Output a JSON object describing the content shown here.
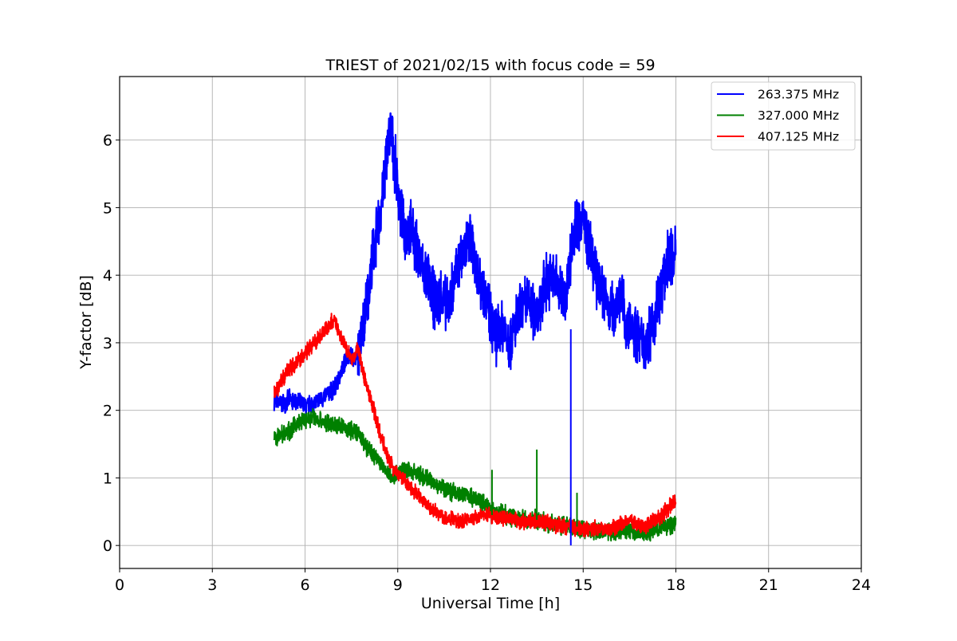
{
  "chart_data": {
    "type": "line",
    "title": "TRIEST of 2021/02/15 with focus code = 59",
    "xlabel": "Universal Time [h]",
    "ylabel": "Y-factor [dB]",
    "xlim": [
      0,
      24
    ],
    "ylim": [
      -0.34,
      6.94
    ],
    "xticks": [
      0,
      3,
      6,
      9,
      12,
      15,
      18,
      21,
      24
    ],
    "xtick_labels": [
      "0",
      "3",
      "6",
      "9",
      "12",
      "15",
      "18",
      "21",
      "24"
    ],
    "yticks": [
      0,
      1,
      2,
      3,
      4,
      5,
      6
    ],
    "ytick_labels": [
      "0",
      "1",
      "2",
      "3",
      "4",
      "5",
      "6"
    ],
    "grid": true,
    "legend_position": "top-right",
    "series": [
      {
        "name": "263.375 MHz",
        "color": "#0000ff",
        "x": [
          5.0,
          5.25,
          5.5,
          5.75,
          6.0,
          6.25,
          6.5,
          6.75,
          7.0,
          7.2,
          7.4,
          7.6,
          7.8,
          8.0,
          8.2,
          8.4,
          8.6,
          8.75,
          8.9,
          9.05,
          9.2,
          9.4,
          9.6,
          9.8,
          10.0,
          10.2,
          10.4,
          10.6,
          10.8,
          11.0,
          11.2,
          11.4,
          11.6,
          11.8,
          12.0,
          12.2,
          12.4,
          12.6,
          12.8,
          13.0,
          13.2,
          13.4,
          13.6,
          13.8,
          14.0,
          14.2,
          14.4,
          14.55,
          14.65,
          14.8,
          15.0,
          15.2,
          15.4,
          15.6,
          15.8,
          16.0,
          16.2,
          16.4,
          16.6,
          16.8,
          17.0,
          17.2,
          17.4,
          17.6,
          17.8,
          18.0
        ],
        "y": [
          2.15,
          2.1,
          2.15,
          2.12,
          2.05,
          2.1,
          2.15,
          2.25,
          2.35,
          2.6,
          2.85,
          2.75,
          3.0,
          3.6,
          4.3,
          4.8,
          5.6,
          6.2,
          5.7,
          5.1,
          4.6,
          4.7,
          4.4,
          4.1,
          3.9,
          3.6,
          3.7,
          3.5,
          3.85,
          4.2,
          4.45,
          4.5,
          4.0,
          3.8,
          3.35,
          3.1,
          3.3,
          3.0,
          3.25,
          3.5,
          3.6,
          3.45,
          3.55,
          3.9,
          3.95,
          3.85,
          3.6,
          4.1,
          4.55,
          4.75,
          4.85,
          4.4,
          4.0,
          3.8,
          3.55,
          3.5,
          3.8,
          3.2,
          3.25,
          3.05,
          3.0,
          3.2,
          3.6,
          3.9,
          4.35,
          4.25
        ]
      },
      {
        "name": "327.000 MHz",
        "color": "#008000",
        "x": [
          5.0,
          5.25,
          5.5,
          5.75,
          6.0,
          6.25,
          6.5,
          6.75,
          7.0,
          7.2,
          7.4,
          7.6,
          7.8,
          8.0,
          8.2,
          8.4,
          8.6,
          8.8,
          9.0,
          9.25,
          9.5,
          9.75,
          10.0,
          10.25,
          10.5,
          10.75,
          11.0,
          11.25,
          11.5,
          11.75,
          12.0,
          12.25,
          12.5,
          12.75,
          13.0,
          13.25,
          13.5,
          13.75,
          14.0,
          14.25,
          14.5,
          14.75,
          15.0,
          15.25,
          15.5,
          15.75,
          16.0,
          16.25,
          16.5,
          16.75,
          17.0,
          17.25,
          17.5,
          17.75,
          18.0
        ],
        "y": [
          1.6,
          1.65,
          1.7,
          1.8,
          1.85,
          1.9,
          1.85,
          1.8,
          1.78,
          1.75,
          1.72,
          1.7,
          1.6,
          1.45,
          1.35,
          1.25,
          1.1,
          1.02,
          1.1,
          1.12,
          1.08,
          1.03,
          0.98,
          0.9,
          0.85,
          0.8,
          0.78,
          0.75,
          0.7,
          0.62,
          0.55,
          0.48,
          0.45,
          0.42,
          0.4,
          0.38,
          0.38,
          0.35,
          0.32,
          0.3,
          0.28,
          0.26,
          0.24,
          0.22,
          0.2,
          0.2,
          0.2,
          0.22,
          0.25,
          0.18,
          0.18,
          0.22,
          0.25,
          0.3,
          0.32
        ]
      },
      {
        "name": "407.125 MHz",
        "color": "#ff0000",
        "x": [
          5.0,
          5.2,
          5.4,
          5.6,
          5.8,
          6.0,
          6.2,
          6.4,
          6.6,
          6.8,
          6.9,
          7.0,
          7.1,
          7.25,
          7.4,
          7.55,
          7.7,
          7.85,
          8.0,
          8.2,
          8.4,
          8.6,
          8.8,
          9.0,
          9.25,
          9.5,
          9.75,
          10.0,
          10.25,
          10.5,
          10.75,
          11.0,
          11.25,
          11.5,
          11.75,
          12.0,
          12.25,
          12.5,
          12.75,
          13.0,
          13.25,
          13.5,
          13.75,
          14.0,
          14.25,
          14.5,
          14.75,
          15.0,
          15.25,
          15.5,
          15.75,
          16.0,
          16.25,
          16.5,
          16.75,
          17.0,
          17.25,
          17.5,
          17.75,
          18.0
        ],
        "y": [
          2.25,
          2.4,
          2.55,
          2.65,
          2.75,
          2.85,
          2.95,
          3.05,
          3.15,
          3.25,
          3.35,
          3.3,
          3.15,
          3.0,
          2.85,
          2.7,
          2.95,
          2.6,
          2.35,
          2.05,
          1.7,
          1.4,
          1.2,
          1.05,
          0.95,
          0.82,
          0.7,
          0.58,
          0.5,
          0.42,
          0.38,
          0.36,
          0.38,
          0.42,
          0.45,
          0.45,
          0.42,
          0.4,
          0.38,
          0.36,
          0.36,
          0.36,
          0.34,
          0.32,
          0.3,
          0.28,
          0.26,
          0.24,
          0.24,
          0.26,
          0.26,
          0.28,
          0.32,
          0.38,
          0.3,
          0.28,
          0.35,
          0.42,
          0.55,
          0.65
        ]
      }
    ],
    "spikes": [
      {
        "series": 0,
        "x": 14.6,
        "y": 0.0,
        "base": 3.2
      },
      {
        "series": 1,
        "x": 12.05,
        "y": 1.12,
        "base": 0.45
      },
      {
        "series": 1,
        "x": 13.5,
        "y": 1.42,
        "base": 0.38
      },
      {
        "series": 1,
        "x": 14.8,
        "y": 0.78,
        "base": 0.28
      }
    ]
  }
}
